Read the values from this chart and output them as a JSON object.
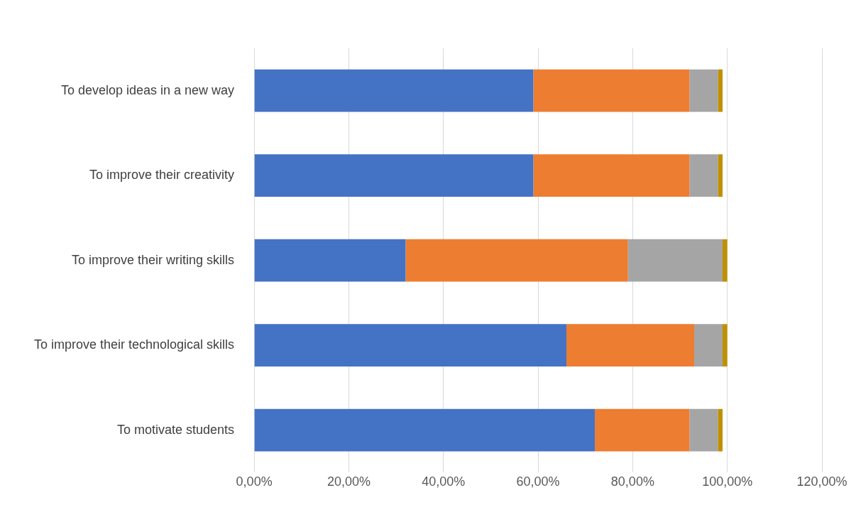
{
  "chart_data": {
    "type": "bar",
    "orientation": "horizontal",
    "stacked": true,
    "categories": [
      "To develop ideas in a new way",
      "To improve their creativity",
      "To improve their writing skills",
      "To improve their technological skills",
      "To motivate students"
    ],
    "series": [
      {
        "color": "#4472c4",
        "values": [
          59,
          59,
          32,
          66,
          72
        ]
      },
      {
        "color": "#ed7d31",
        "values": [
          33,
          33,
          47,
          27,
          20
        ]
      },
      {
        "color": "#a5a5a5",
        "values": [
          6,
          6,
          20,
          6,
          6
        ]
      },
      {
        "color": "#bf9000",
        "values": [
          1,
          1,
          1,
          1,
          1
        ]
      }
    ],
    "xlim": [
      0,
      120
    ],
    "xticks": [
      {
        "value": 0,
        "label": "0,00%"
      },
      {
        "value": 20,
        "label": "20,00%"
      },
      {
        "value": 40,
        "label": "40,00%"
      },
      {
        "value": 60,
        "label": "60,00%"
      },
      {
        "value": 80,
        "label": "80,00%"
      },
      {
        "value": 100,
        "label": "100,00%"
      },
      {
        "value": 120,
        "label": "120,00%"
      }
    ],
    "grid": "x",
    "legend": false
  }
}
